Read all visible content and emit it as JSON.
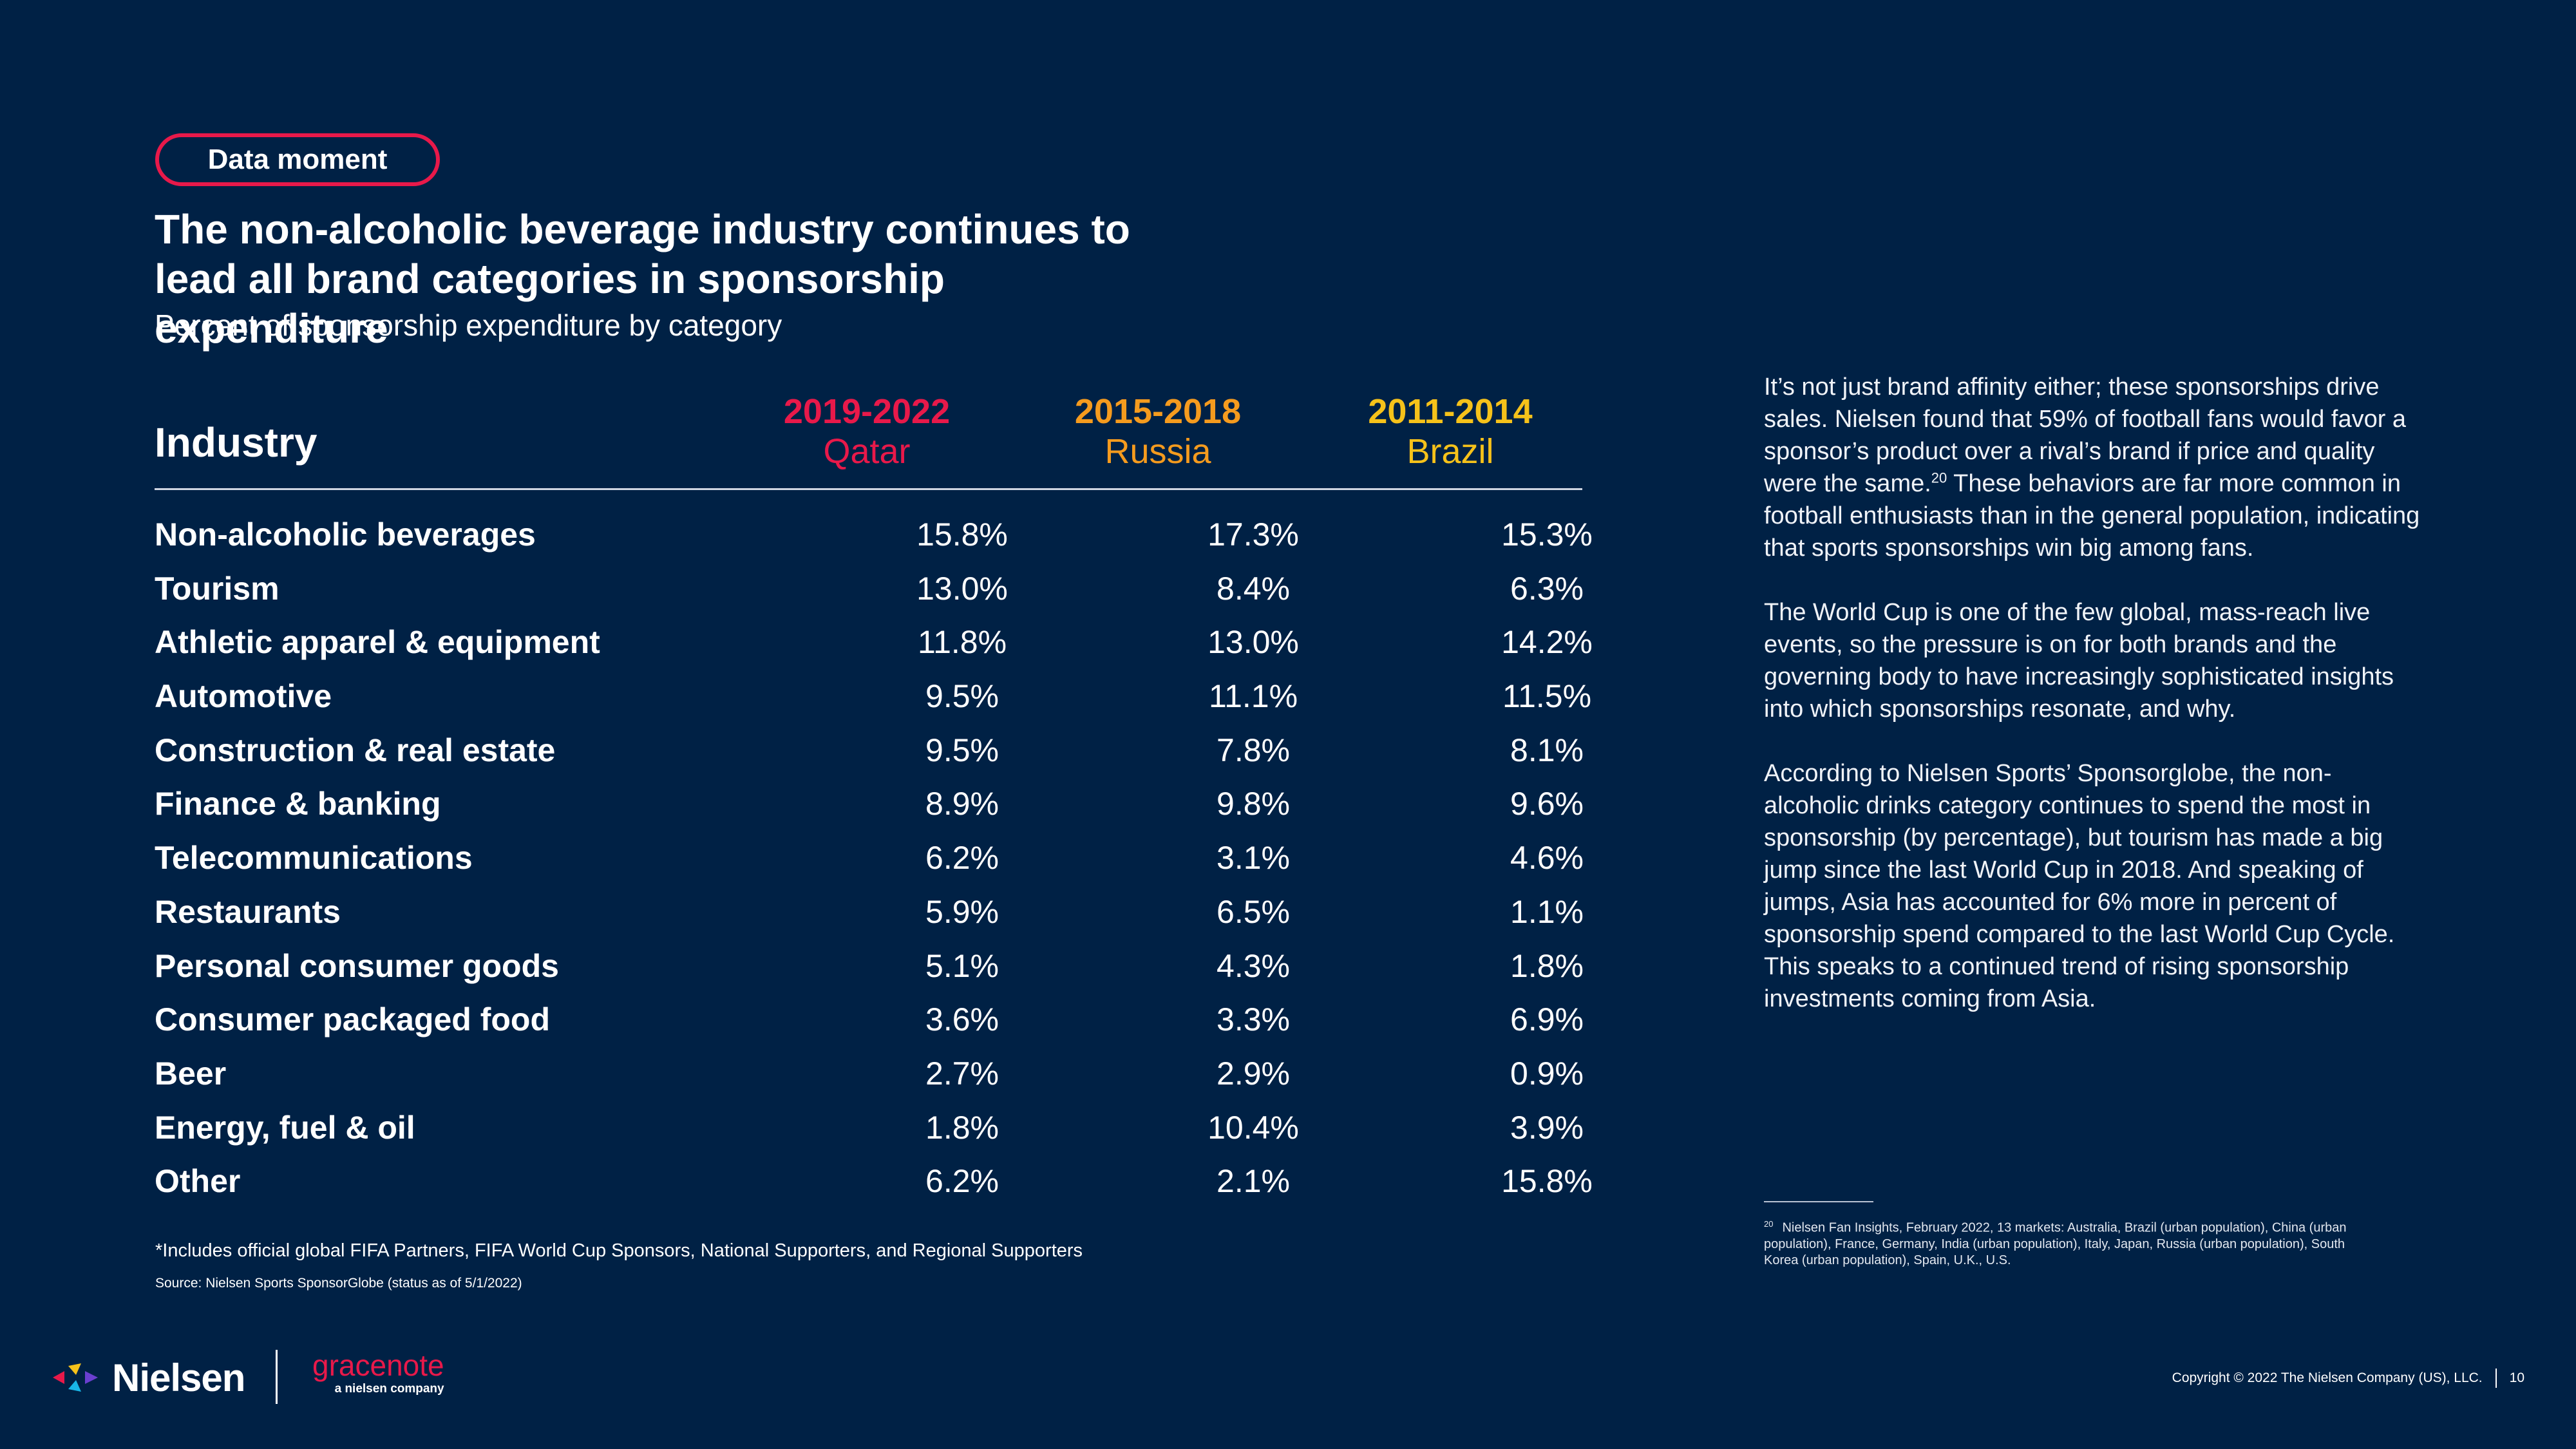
{
  "badge": "Data moment",
  "title_line1": "The non-alcoholic beverage industry continues to",
  "title_line2": "lead all brand categories in sponsorship expenditure",
  "subtitle": "Percent of sponsorship expenditure by category",
  "table": {
    "industry_header": "Industry",
    "columns": [
      {
        "years": "2019-2022",
        "host": "Qatar",
        "color": "#e8194a"
      },
      {
        "years": "2015-2018",
        "host": "Russia",
        "color": "#f59b1e"
      },
      {
        "years": "2011-2014",
        "host": "Brazil",
        "color": "#f6c21a"
      }
    ],
    "rows": [
      {
        "industry": "Non-alcoholic beverages",
        "v1": "15.8%",
        "v2": "17.3%",
        "v3": "15.3%"
      },
      {
        "industry": "Tourism",
        "v1": "13.0%",
        "v2": "8.4%",
        "v3": "6.3%"
      },
      {
        "industry": "Athletic apparel & equipment",
        "v1": "11.8%",
        "v2": "13.0%",
        "v3": "14.2%"
      },
      {
        "industry": "Automotive",
        "v1": "9.5%",
        "v2": "11.1%",
        "v3": "11.5%"
      },
      {
        "industry": "Construction & real estate",
        "v1": "9.5%",
        "v2": "7.8%",
        "v3": "8.1%"
      },
      {
        "industry": "Finance & banking",
        "v1": "8.9%",
        "v2": "9.8%",
        "v3": "9.6%"
      },
      {
        "industry": "Telecommunications",
        "v1": "6.2%",
        "v2": "3.1%",
        "v3": "4.6%"
      },
      {
        "industry": "Restaurants",
        "v1": "5.9%",
        "v2": "6.5%",
        "v3": "1.1%"
      },
      {
        "industry": "Personal consumer goods",
        "v1": "5.1%",
        "v2": "4.3%",
        "v3": "1.8%"
      },
      {
        "industry": "Consumer packaged food",
        "v1": "3.6%",
        "v2": "3.3%",
        "v3": "6.9%"
      },
      {
        "industry": "Beer",
        "v1": "2.7%",
        "v2": "2.9%",
        "v3": "0.9%"
      },
      {
        "industry": "Energy, fuel & oil",
        "v1": "1.8%",
        "v2": "10.4%",
        "v3": "3.9%"
      },
      {
        "industry": "Other",
        "v1": "6.2%",
        "v2": "2.1%",
        "v3": "15.8%"
      }
    ]
  },
  "footnote": "*Includes official global FIFA Partners, FIFA World Cup Sponsors, National Supporters, and Regional Supporters",
  "source": "Source: Nielsen Sports SponsorGlobe (status as of 5/1/2022)",
  "sidebar": {
    "p1_a": "It’s not just brand affinity either; these sponsorships drive sales. Nielsen found that 59% of football fans would favor a sponsor’s product over a rival’s brand if price and quality were the same.",
    "p1_sup": "20",
    "p1_b": " These behaviors are far more common in football enthusiasts than in the general population, indicating that sports sponsorships win big among fans.",
    "p2": "The World Cup is one of the few global, mass-reach live events, so the pressure is on for both brands and the governing body to have increasingly sophisticated insights into which sponsorships resonate, and why.",
    "p3": "According to Nielsen Sports’ Sponsorglobe, the non-alcoholic drinks category continues to spend the most in sponsorship (by percentage), but tourism has made a big jump since the last World Cup in 2018. And speaking of jumps, Asia has accounted for 6% more in percent of sponsorship spend compared to the last World Cup Cycle. This speaks to a continued trend of rising sponsorship investments coming from Asia."
  },
  "reference": {
    "num": "20",
    "text": "Nielsen Fan Insights, February 2022, 13 markets: Australia, Brazil (urban population), China (urban population), France, Germany, India (urban population), Italy, Japan, Russia (urban population), South Korea (urban population), Spain, U.K., U.S."
  },
  "footer": {
    "brand": "Nielsen",
    "partner": "gracenote",
    "partner_sub": "a nielsen company",
    "copyright": "Copyright © 2022 The Nielsen Company (US), LLC.",
    "page_number": "10"
  },
  "colors": {
    "background": "#002145",
    "accent_red": "#e8194a",
    "accent_orange": "#f59b1e",
    "accent_yellow": "#f6c21a"
  }
}
